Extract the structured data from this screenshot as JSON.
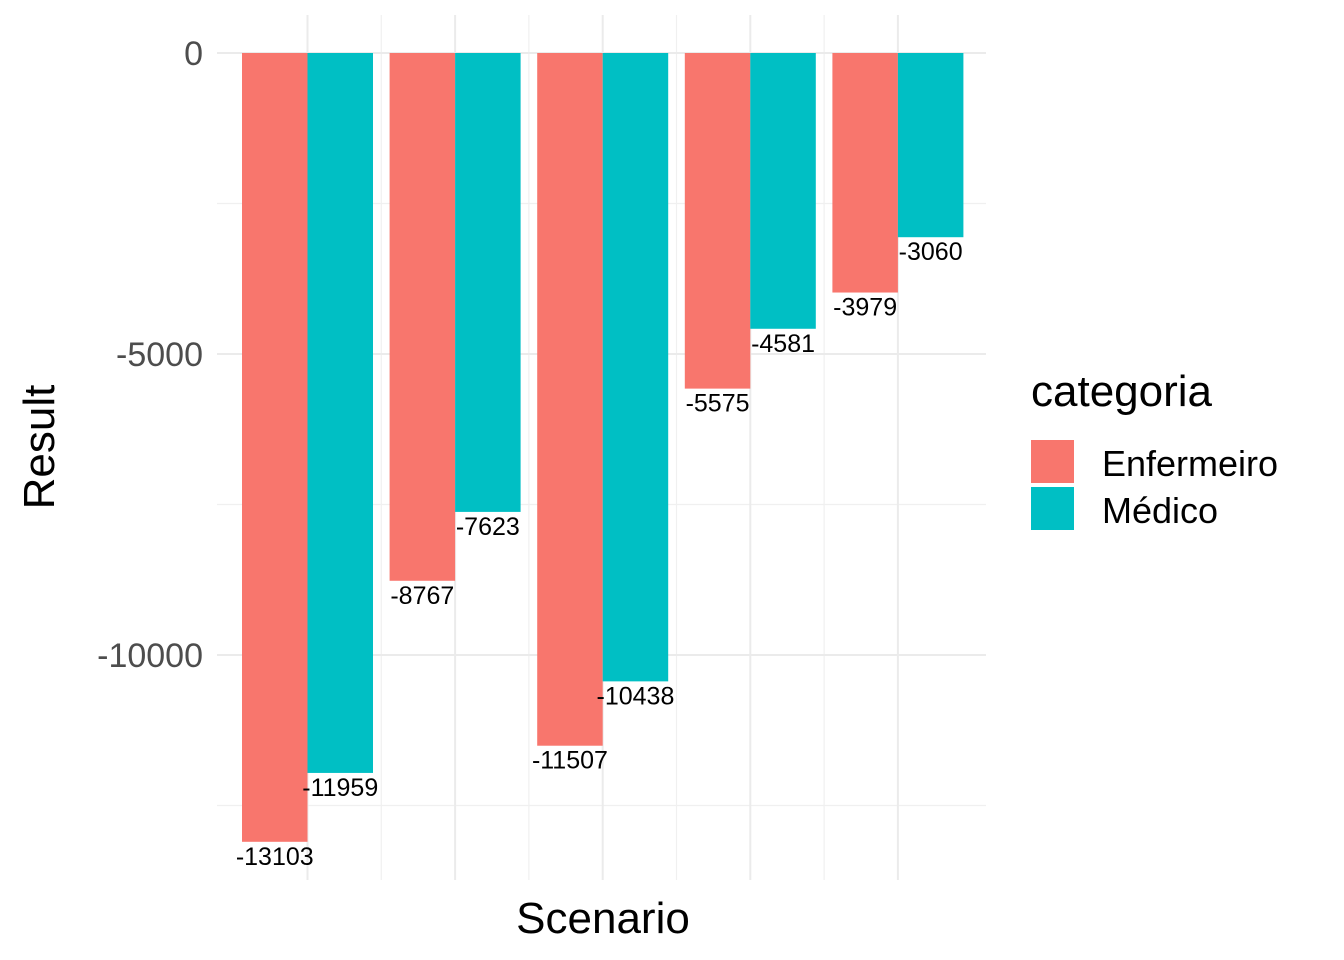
{
  "chart_data": {
    "type": "bar",
    "xlabel": "Scenario",
    "ylabel": "Result",
    "categories": [
      "",
      "",
      "",
      "",
      ""
    ],
    "ylim": [
      -13700,
      600
    ],
    "y_ticks": [
      0,
      -5000,
      -10000
    ],
    "grid": true,
    "legend_position": "right",
    "legend_title": "categoria",
    "series": [
      {
        "name": "Enfermeiro",
        "color": "#F8766D",
        "values": [
          -13103,
          -8767,
          -11507,
          -5575,
          -3979
        ]
      },
      {
        "name": "Médico",
        "color": "#00BFC4",
        "values": [
          -11959,
          -7623,
          -10438,
          -4581,
          -3060
        ]
      }
    ]
  }
}
